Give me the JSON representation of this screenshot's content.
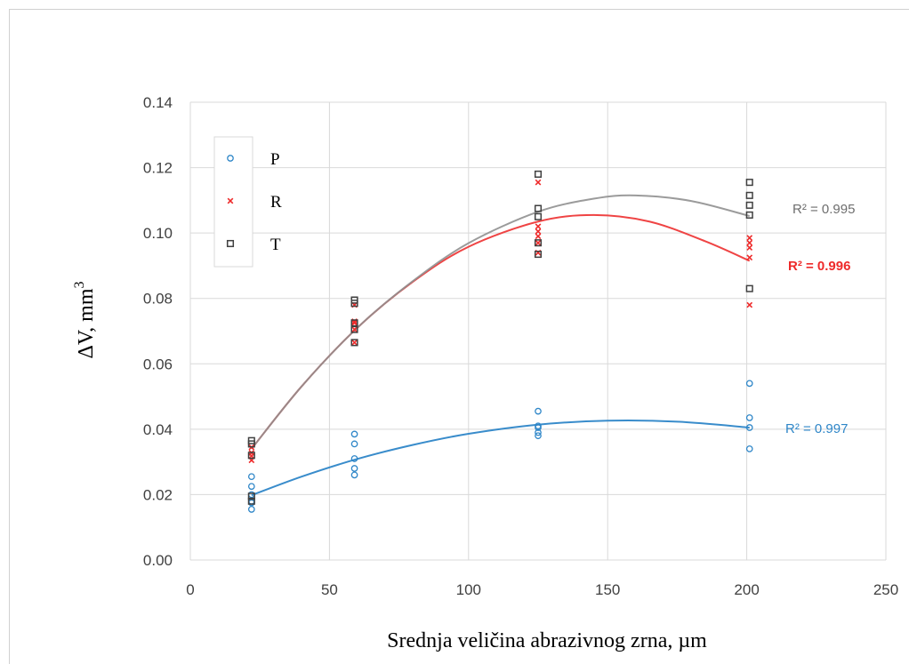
{
  "chart_data": {
    "type": "scatter",
    "title": "",
    "xlabel": "Srednja veličina abrazivnog zrna, µm",
    "ylabel_main": "ΔV, mm",
    "ylabel_sup": "3",
    "xlim": [
      0,
      250
    ],
    "ylim": [
      0,
      0.14
    ],
    "xticks": [
      0,
      50,
      100,
      150,
      200,
      250
    ],
    "xtick_labels": [
      "0",
      "50",
      "100",
      "150",
      "200",
      "250"
    ],
    "yticks": [
      0,
      0.02,
      0.04,
      0.06,
      0.08,
      0.1,
      0.12,
      0.14
    ],
    "ytick_labels": [
      "0.00",
      "0.02",
      "0.04",
      "0.06",
      "0.08",
      "0.10",
      "0.12",
      "0.14"
    ],
    "grid": true,
    "legend_position": "top-left",
    "series": [
      {
        "name": "P",
        "marker": "circle",
        "color": "#2e86c8",
        "x": [
          22,
          22,
          22,
          22,
          22,
          22,
          59,
          59,
          59,
          59,
          59,
          125,
          125,
          125,
          125,
          125,
          201,
          201,
          201,
          201
        ],
        "y": [
          0.0155,
          0.018,
          0.02,
          0.0225,
          0.0255,
          0.0175,
          0.026,
          0.028,
          0.031,
          0.0355,
          0.0385,
          0.038,
          0.039,
          0.0405,
          0.041,
          0.0455,
          0.034,
          0.0405,
          0.0435,
          0.054
        ],
        "trend_x": [
          22,
          40,
          60,
          80,
          100,
          125,
          150,
          175,
          201
        ],
        "trend_y": [
          0.0198,
          0.0255,
          0.0309,
          0.0352,
          0.0386,
          0.0414,
          0.0426,
          0.0423,
          0.0405
        ],
        "r2_label": "R² = 0.997"
      },
      {
        "name": "R",
        "marker": "x",
        "color": "#ee2a2a",
        "x": [
          22,
          22,
          22,
          22,
          59,
          59,
          59,
          59,
          59,
          125,
          125,
          125,
          125,
          125,
          125,
          201,
          201,
          201,
          201,
          201
        ],
        "y": [
          0.0305,
          0.0318,
          0.0328,
          0.0345,
          0.0665,
          0.0705,
          0.0725,
          0.073,
          0.078,
          0.094,
          0.097,
          0.099,
          0.1005,
          0.102,
          0.1155,
          0.078,
          0.0925,
          0.0955,
          0.097,
          0.0985
        ],
        "trend_x": [
          22,
          40,
          60,
          80,
          100,
          125,
          145,
          165,
          185,
          201
        ],
        "trend_y": [
          0.034,
          0.0531,
          0.071,
          0.0851,
          0.0958,
          0.1035,
          0.1055,
          0.1035,
          0.0975,
          0.0915
        ],
        "r2_label": "R² = 0.996"
      },
      {
        "name": "T",
        "marker": "square",
        "color": "#404040",
        "x": [
          22,
          22,
          22,
          22,
          22,
          59,
          59,
          59,
          59,
          59,
          125,
          125,
          125,
          125,
          125,
          201,
          201,
          201,
          201,
          201
        ],
        "y": [
          0.018,
          0.0195,
          0.032,
          0.0355,
          0.0365,
          0.0665,
          0.0705,
          0.0725,
          0.0785,
          0.0795,
          0.0935,
          0.097,
          0.105,
          0.1075,
          0.118,
          0.083,
          0.1055,
          0.1085,
          0.1115,
          0.1155
        ],
        "trend_x": [
          22,
          40,
          60,
          80,
          100,
          125,
          145,
          160,
          180,
          201
        ],
        "trend_y": [
          0.034,
          0.0531,
          0.071,
          0.0853,
          0.0969,
          0.1065,
          0.1105,
          0.1115,
          0.1098,
          0.1052
        ],
        "r2_label": "R² = 0.995"
      }
    ]
  }
}
